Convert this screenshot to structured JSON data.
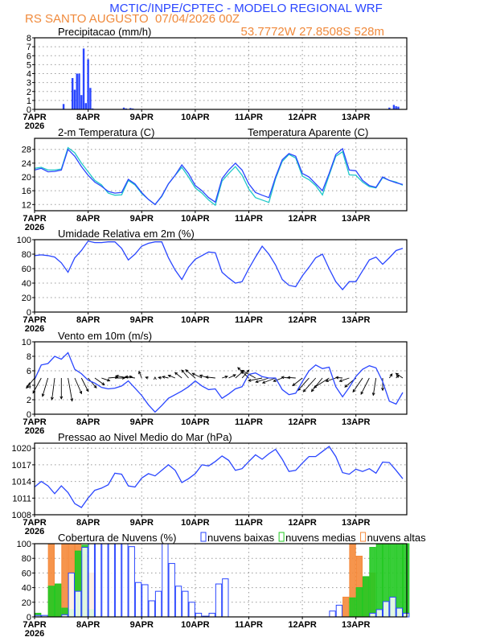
{
  "header": {
    "title": "MCTIC/INPE/CPTEC - MODELO REGIONAL WRF",
    "station": "RS SANTO AUGUSTO",
    "run": "07/04/2026 00Z",
    "location": "53.7772W 27.8508S 528m"
  },
  "colors": {
    "blue": "#2a46ff",
    "cyan": "#1fc8c8",
    "green": "#22c922",
    "orange": "#f5893a",
    "header_blue": "#2a46ff",
    "header_orange": "#f08a3c"
  },
  "chart_data": {
    "x_axis": {
      "tick_labels": [
        "7APR",
        "8APR",
        "9APR",
        "10APR",
        "11APR",
        "12APR",
        "13APR"
      ],
      "year_label": "2026",
      "range": [
        "2026-04-07T00",
        "2026-04-13T23"
      ],
      "grid": true,
      "times": [
        "2026-04-07T00",
        "2026-04-07T03",
        "2026-04-07T06",
        "2026-04-07T09",
        "2026-04-07T12",
        "2026-04-07T15",
        "2026-04-07T18",
        "2026-04-07T21",
        "2026-04-08T00",
        "2026-04-08T03",
        "2026-04-08T06",
        "2026-04-08T09",
        "2026-04-08T12",
        "2026-04-08T15",
        "2026-04-08T18",
        "2026-04-08T21",
        "2026-04-09T00",
        "2026-04-09T03",
        "2026-04-09T06",
        "2026-04-09T09",
        "2026-04-09T12",
        "2026-04-09T15",
        "2026-04-09T18",
        "2026-04-09T21",
        "2026-04-10T00",
        "2026-04-10T03",
        "2026-04-10T06",
        "2026-04-10T09",
        "2026-04-10T12",
        "2026-04-10T15",
        "2026-04-10T18",
        "2026-04-10T21",
        "2026-04-11T00",
        "2026-04-11T03",
        "2026-04-11T06",
        "2026-04-11T09",
        "2026-04-11T12",
        "2026-04-11T15",
        "2026-04-11T18",
        "2026-04-11T21",
        "2026-04-12T00",
        "2026-04-12T03",
        "2026-04-12T06",
        "2026-04-12T09",
        "2026-04-12T12",
        "2026-04-12T15",
        "2026-04-12T18",
        "2026-04-12T21",
        "2026-04-13T00",
        "2026-04-13T03",
        "2026-04-13T06",
        "2026-04-13T09",
        "2026-04-13T12",
        "2026-04-13T15",
        "2026-04-13T18",
        "2026-04-13T21"
      ]
    },
    "panels": [
      {
        "type": "bar",
        "title": "Precipitacao (mm/h)",
        "ylim": [
          0,
          8
        ],
        "yticks": [
          0,
          1,
          2,
          3,
          4,
          5,
          6,
          7,
          8
        ],
        "color": "#2a46ff",
        "bars": {
          "time": [
            "2026-04-07T13",
            "2026-04-07T17",
            "2026-04-07T18",
            "2026-04-07T19",
            "2026-04-07T20",
            "2026-04-07T21",
            "2026-04-07T22",
            "2026-04-07T23",
            "2026-04-08T00",
            "2026-04-08T01",
            "2026-04-08T02",
            "2026-04-08T16",
            "2026-04-08T17",
            "2026-04-08T19",
            "2026-04-08T20",
            "2026-04-13T15",
            "2026-04-13T17",
            "2026-04-13T18",
            "2026-04-13T19"
          ],
          "values": [
            0.6,
            3.5,
            2.2,
            4.0,
            4.0,
            1.6,
            6.8,
            0.7,
            5.6,
            2.4,
            0.1,
            0.2,
            0.1,
            0.15,
            0.1,
            0.2,
            0.5,
            0.35,
            0.3
          ]
        }
      },
      {
        "type": "line",
        "title": "2-m Temperatura (C)",
        "ylim": [
          10.2,
          31.2
        ],
        "yticks": [
          12,
          16,
          20,
          24,
          28
        ],
        "series": [
          {
            "name": "Temperatura Aparente (C)",
            "color": "#1fc8c8",
            "values": [
              22.5,
              22.8,
              22,
              22,
              22.3,
              28.5,
              27,
              24,
              21.5,
              19,
              17.7,
              15.3,
              14.7,
              14.8,
              19,
              17.7,
              15.2,
              13.5,
              12,
              14.3,
              18,
              20.5,
              22.8,
              20,
              16.8,
              15.3,
              13.3,
              11.8,
              18.8,
              21,
              23,
              20.5,
              16.5,
              14,
              13.3,
              12.6,
              19.5,
              24.5,
              26.5,
              25.5,
              20.2,
              19.2,
              17.5,
              14.8,
              20.5,
              26,
              27.3,
              20.6,
              20.5,
              18.5,
              17.2,
              16.8,
              19.8,
              19,
              18.5,
              17.6
            ]
          },
          {
            "color": "#2a46ff",
            "values": [
              22,
              22.5,
              21.5,
              21.6,
              22,
              28,
              26,
              23,
              20.5,
              18.5,
              17.3,
              15.8,
              15.3,
              15.5,
              19.3,
              18,
              15.5,
              13.5,
              12,
              14.5,
              18,
              20.5,
              23.5,
              21,
              17.5,
              16,
              14,
              12.7,
              19.5,
              22,
              24,
              22,
              18,
              15.5,
              14.7,
              14,
              20,
              25,
              26.8,
              26,
              21,
              20,
              18,
              16,
              21,
              26.5,
              28.2,
              22,
              21.8,
              19,
              17.5,
              17,
              20,
              19,
              18.3,
              17.8
            ]
          }
        ]
      },
      {
        "type": "line",
        "title": "Umidade Relativa em 2m (%)",
        "ylim": [
          0,
          100
        ],
        "yticks": [
          0,
          20,
          40,
          60,
          80,
          100
        ],
        "series": [
          {
            "color": "#2a46ff",
            "values": [
              78,
              79,
              78,
              76,
              68,
              55,
              75,
              85,
              98,
              96,
              96,
              97,
              97,
              88,
              72,
              80,
              91,
              95,
              97,
              97,
              75,
              58,
              45,
              62,
              73,
              78,
              83,
              82,
              55,
              47,
              40,
              42,
              60,
              76,
              91,
              80,
              65,
              45,
              37,
              35,
              50,
              62,
              75,
              80,
              60,
              42,
              31,
              42,
              42,
              57,
              72,
              76,
              66,
              75,
              85,
              88
            ]
          }
        ]
      },
      {
        "type": "wind",
        "title": "Vento em 10m (m/s)",
        "ylim": [
          0,
          10
        ],
        "yticks": [
          0,
          2,
          4,
          6,
          8,
          10
        ],
        "series": [
          {
            "color": "#2a46ff",
            "values": [
              4.8,
              6.8,
              7,
              8,
              7.6,
              8.5,
              6.2,
              5.6,
              4.7,
              4.3,
              3.7,
              3.5,
              3.6,
              3.9,
              4.6,
              3.6,
              2.6,
              1.3,
              0.3,
              1.2,
              2.2,
              2.7,
              3.2,
              3.8,
              4.6,
              3.9,
              3.4,
              3.5,
              2.2,
              2.8,
              3.5,
              3.8,
              5.5,
              5.7,
              5.2,
              5,
              5,
              3.4,
              2.7,
              2.9,
              4.5,
              6,
              6.8,
              6.3,
              6.5,
              3.8,
              2.4,
              3.7,
              5.2,
              6.2,
              6.7,
              6.4,
              4.5,
              1.8,
              1.4,
              3
            ]
          }
        ],
        "vectors": {
          "color": "#000000",
          "u": [
            -3,
            -3,
            -2,
            -1,
            0,
            1.5,
            2.5,
            2.5,
            3,
            3.5,
            3,
            3.5,
            3.6,
            3.8,
            -4.5,
            -3.5,
            -1,
            -1,
            0,
            -1.2,
            -2.2,
            -2.5,
            -2.5,
            -2.5,
            -3.5,
            -3.5,
            -3.2,
            -3.5,
            2,
            2.5,
            2.8,
            2.5,
            -4,
            -5,
            -5,
            -4.8,
            -4.7,
            -3.2,
            -2.7,
            -2.9,
            -3.5,
            -4,
            -4.5,
            -4,
            -5.5,
            -3.6,
            -2.4,
            -3.5,
            -4,
            -3.5,
            -3,
            -1,
            0,
            1,
            1,
            -2.5
          ],
          "v": [
            -3.7,
            -5.5,
            -6.7,
            -7.9,
            -7.6,
            -8.4,
            -5.7,
            -4.9,
            -3.6,
            -2.5,
            -1,
            0.3,
            0,
            0.5,
            0.8,
            0.5,
            2.4,
            0.3,
            0.3,
            0.2,
            0.5,
            1,
            2,
            2.9,
            3,
            1.7,
            1,
            0.4,
            0.6,
            1.2,
            2.4,
            2.9,
            3.8,
            2.8,
            -1,
            -1.5,
            -1.8,
            -1.2,
            0.3,
            0.2,
            -2.8,
            -4.5,
            -5,
            -4.9,
            -3.5,
            -1.2,
            0.2,
            -1.2,
            -3.3,
            -5.1,
            -5.9,
            -6.3,
            -4.5,
            1.5,
            1,
            1.7
          ]
        }
      },
      {
        "type": "line",
        "title": "Pressao ao Nivel Medio do Mar (hPa)",
        "ylim": [
          1008,
          1020.9
        ],
        "yticks": [
          1008,
          1011,
          1014,
          1017,
          1020
        ],
        "series": [
          {
            "color": "#2a46ff",
            "values": [
              1013,
              1014,
              1013.2,
              1011.8,
              1013.2,
              1012,
              1010,
              1009.3,
              1011,
              1012.4,
              1012.8,
              1013.4,
              1015.5,
              1015.3,
              1013.2,
              1013,
              1014.6,
              1015.4,
              1015,
              1016,
              1017,
              1016,
              1013.8,
              1014.5,
              1015.4,
              1017,
              1016.8,
              1017.6,
              1018.6,
              1017.8,
              1016,
              1016.3,
              1017.6,
              1018.8,
              1018,
              1019,
              1019.8,
              1018,
              1015.8,
              1016,
              1017.3,
              1018.5,
              1018.5,
              1019.4,
              1020.3,
              1018.5,
              1015.6,
              1015.3,
              1016.2,
              1015.8,
              1016.3,
              1015.5,
              1017.5,
              1017.4,
              1016,
              1014.5
            ]
          }
        ]
      },
      {
        "type": "bar",
        "title": "Cobertura de Nuvens (%)",
        "ylim": [
          0,
          100
        ],
        "yticks": [
          0,
          20,
          40,
          60,
          80,
          100
        ],
        "series": [
          {
            "name": "nuvens altas",
            "color": "#f5893a",
            "values": [
              0,
              0,
              100,
              45,
              100,
              100,
              100,
              85,
              60,
              0,
              0,
              0,
              0,
              0,
              0,
              0,
              0,
              0,
              0,
              0,
              0,
              0,
              0,
              0,
              0,
              0,
              0,
              0,
              0,
              0,
              0,
              0,
              0,
              0,
              0,
              0,
              0,
              0,
              0,
              0,
              0,
              0,
              0,
              0,
              0,
              0,
              27,
              100,
              83,
              55,
              60,
              0,
              0,
              0,
              0,
              0
            ]
          },
          {
            "name": "nuvens medias",
            "color": "#22c922",
            "values": [
              5,
              1,
              42,
              45,
              12,
              10,
              90,
              98,
              10,
              0,
              0,
              0,
              0,
              0,
              0,
              0,
              0,
              0,
              0,
              0,
              0,
              0,
              0,
              0,
              0,
              0,
              0,
              0,
              0,
              0,
              0,
              0,
              0,
              0,
              0,
              0,
              0,
              0,
              0,
              0,
              0,
              0,
              0,
              0,
              0,
              0,
              0,
              26,
              40,
              55,
              95,
              100,
              100,
              100,
              100,
              100
            ]
          },
          {
            "name": "nuvens baixas",
            "color": "#2a46ff",
            "values": [
              2,
              2,
              0,
              0,
              3,
              60,
              35,
              95,
              100,
              100,
              100,
              100,
              100,
              100,
              96,
              47,
              44,
              22,
              35,
              100,
              73,
              42,
              35,
              20,
              5,
              1,
              5,
              45,
              52,
              0,
              0,
              0,
              0,
              0,
              0,
              0,
              0,
              0,
              0,
              0,
              0,
              0,
              0,
              0,
              8,
              16,
              0,
              0,
              0,
              0,
              5,
              10,
              21,
              27,
              12,
              5
            ]
          }
        ],
        "legend_order": [
          "nuvens baixas",
          "nuvens medias",
          "nuvens altas"
        ]
      }
    ]
  }
}
